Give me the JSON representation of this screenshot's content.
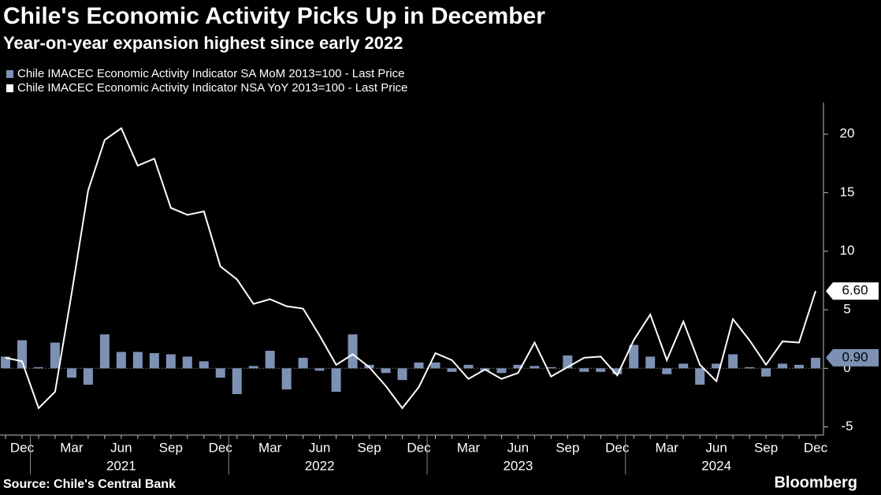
{
  "chart_data": {
    "type": "bar_line",
    "title": "Chile's Economic Activity Picks Up in December",
    "subtitle": "Year-on-year expansion highest since early 2022",
    "source": "Source: Chile's Central Bank",
    "brand": "Bloomberg",
    "categories": [
      null,
      "Dec",
      null,
      null,
      "Mar",
      null,
      null,
      "Jun",
      null,
      null,
      "Sep",
      null,
      null,
      "Dec",
      null,
      null,
      "Mar",
      null,
      null,
      "Jun",
      null,
      null,
      "Sep",
      null,
      null,
      "Dec",
      null,
      null,
      "Mar",
      null,
      null,
      "Jun",
      null,
      null,
      "Sep",
      null,
      null,
      "Dec",
      null,
      null,
      "Mar",
      null,
      null,
      "Jun",
      null,
      null,
      "Sep",
      null,
      null,
      "Dec"
    ],
    "years": [
      "2021",
      "2022",
      "2023",
      "2024"
    ],
    "series": [
      {
        "name": "Chile IMACEC Economic Activity Indicator SA MoM 2013=100 - Last Price",
        "color": "#7d91b4",
        "kind": "bar",
        "values": [
          1.0,
          2.4,
          0.1,
          2.2,
          -0.8,
          -1.4,
          2.9,
          1.4,
          1.4,
          1.3,
          1.2,
          1.0,
          0.6,
          -0.8,
          -2.2,
          0.2,
          1.5,
          -1.8,
          0.9,
          -0.2,
          -2.0,
          2.9,
          0.3,
          -0.4,
          -1.0,
          0.5,
          0.5,
          -0.3,
          0.3,
          -0.2,
          -0.4,
          0.3,
          0.2,
          0.1,
          1.1,
          -0.3,
          -0.3,
          -0.5,
          2.0,
          1.0,
          -0.5,
          0.4,
          -1.4,
          0.4,
          1.2,
          0.1,
          -0.7,
          0.4,
          0.3,
          0.9
        ],
        "last_label": "0.90"
      },
      {
        "name": "Chile IMACEC Economic Activity Indicator NSA YoY 2013=100 - Last Price",
        "color": "#ffffff",
        "kind": "line",
        "values": [
          0.9,
          0.6,
          -3.4,
          -2.0,
          6.4,
          15.2,
          19.5,
          20.5,
          17.3,
          17.9,
          13.7,
          13.1,
          13.4,
          8.7,
          7.6,
          5.5,
          5.9,
          5.3,
          5.1,
          2.8,
          0.3,
          1.2,
          0.1,
          -1.5,
          -3.4,
          -1.6,
          1.3,
          0.7,
          -0.9,
          -0.1,
          -0.9,
          -0.4,
          2.2,
          -0.7,
          0.1,
          0.9,
          1.0,
          -0.6,
          2.4,
          4.6,
          0.7,
          4.0,
          0.3,
          -1.1,
          4.2,
          2.4,
          0.3,
          2.3,
          2.2,
          6.6
        ],
        "last_label": "6.60"
      }
    ],
    "ylim": [
      -5.7,
      22.7
    ],
    "yticks": [
      -5,
      0,
      5,
      10,
      15,
      20
    ],
    "grid": false
  }
}
